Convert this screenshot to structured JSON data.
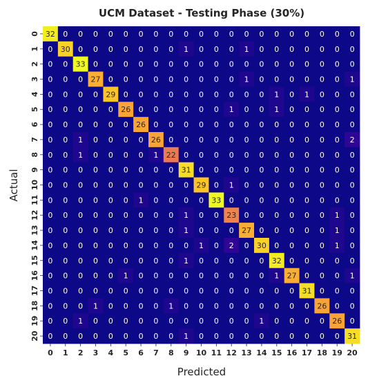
{
  "chart_data": {
    "type": "heatmap",
    "title": "UCM Dataset - Testing Phase (30%)",
    "xlabel": "Predicted",
    "ylabel": "Actual",
    "x_categories": [
      "0",
      "1",
      "2",
      "3",
      "4",
      "5",
      "6",
      "7",
      "8",
      "9",
      "10",
      "11",
      "12",
      "13",
      "14",
      "15",
      "16",
      "17",
      "18",
      "19",
      "20"
    ],
    "y_categories": [
      "0",
      "1",
      "2",
      "3",
      "4",
      "5",
      "6",
      "7",
      "8",
      "9",
      "10",
      "11",
      "12",
      "13",
      "14",
      "15",
      "16",
      "17",
      "18",
      "19",
      "20"
    ],
    "values": [
      [
        32,
        0,
        0,
        0,
        0,
        0,
        0,
        0,
        0,
        0,
        0,
        0,
        0,
        0,
        0,
        0,
        0,
        0,
        0,
        0,
        0
      ],
      [
        0,
        30,
        0,
        0,
        0,
        0,
        0,
        0,
        0,
        1,
        0,
        0,
        0,
        1,
        0,
        0,
        0,
        0,
        0,
        0,
        0
      ],
      [
        0,
        0,
        33,
        0,
        0,
        0,
        0,
        0,
        0,
        0,
        0,
        0,
        0,
        0,
        0,
        0,
        0,
        0,
        0,
        0,
        0
      ],
      [
        0,
        0,
        0,
        27,
        0,
        0,
        0,
        0,
        0,
        0,
        0,
        0,
        0,
        1,
        0,
        0,
        0,
        0,
        0,
        0,
        1
      ],
      [
        0,
        0,
        0,
        0,
        29,
        0,
        0,
        0,
        0,
        0,
        0,
        0,
        0,
        0,
        0,
        1,
        0,
        1,
        0,
        0,
        0
      ],
      [
        0,
        0,
        0,
        0,
        0,
        26,
        0,
        0,
        0,
        0,
        0,
        0,
        1,
        0,
        0,
        1,
        0,
        0,
        0,
        0,
        0
      ],
      [
        0,
        0,
        0,
        0,
        0,
        0,
        26,
        0,
        0,
        0,
        0,
        0,
        0,
        0,
        0,
        0,
        0,
        0,
        0,
        0,
        0
      ],
      [
        0,
        0,
        1,
        0,
        0,
        0,
        0,
        26,
        0,
        0,
        0,
        0,
        0,
        0,
        0,
        0,
        0,
        0,
        0,
        0,
        2
      ],
      [
        0,
        0,
        1,
        0,
        0,
        0,
        0,
        1,
        22,
        0,
        0,
        0,
        0,
        0,
        0,
        0,
        0,
        0,
        0,
        0,
        0
      ],
      [
        0,
        0,
        0,
        0,
        0,
        0,
        0,
        0,
        0,
        31,
        0,
        0,
        0,
        0,
        0,
        0,
        0,
        0,
        0,
        0,
        0
      ],
      [
        0,
        0,
        0,
        0,
        0,
        0,
        0,
        0,
        0,
        0,
        29,
        0,
        1,
        0,
        0,
        0,
        0,
        0,
        0,
        0,
        0
      ],
      [
        0,
        0,
        0,
        0,
        0,
        0,
        1,
        0,
        0,
        0,
        0,
        33,
        0,
        0,
        0,
        0,
        0,
        0,
        0,
        0,
        0
      ],
      [
        0,
        0,
        0,
        0,
        0,
        0,
        0,
        0,
        0,
        1,
        0,
        0,
        23,
        0,
        0,
        0,
        0,
        0,
        0,
        1,
        0
      ],
      [
        0,
        0,
        0,
        0,
        0,
        0,
        0,
        0,
        0,
        1,
        0,
        0,
        0,
        27,
        0,
        0,
        0,
        0,
        0,
        1,
        0
      ],
      [
        0,
        0,
        0,
        0,
        0,
        0,
        0,
        0,
        0,
        0,
        1,
        0,
        2,
        0,
        30,
        0,
        0,
        0,
        0,
        1,
        0
      ],
      [
        0,
        0,
        0,
        0,
        0,
        0,
        0,
        0,
        0,
        1,
        0,
        0,
        0,
        0,
        0,
        32,
        0,
        0,
        0,
        0,
        0
      ],
      [
        0,
        0,
        0,
        0,
        0,
        1,
        0,
        0,
        0,
        0,
        0,
        0,
        0,
        0,
        0,
        1,
        27,
        0,
        0,
        0,
        1
      ],
      [
        0,
        0,
        0,
        0,
        0,
        0,
        0,
        0,
        0,
        0,
        0,
        0,
        0,
        0,
        0,
        0,
        0,
        31,
        0,
        0,
        0
      ],
      [
        0,
        0,
        0,
        1,
        0,
        0,
        0,
        0,
        1,
        0,
        0,
        0,
        0,
        0,
        0,
        0,
        0,
        0,
        26,
        0,
        0
      ],
      [
        0,
        0,
        1,
        0,
        0,
        0,
        0,
        0,
        0,
        0,
        0,
        0,
        0,
        0,
        1,
        0,
        0,
        0,
        0,
        26,
        0
      ],
      [
        0,
        0,
        0,
        0,
        0,
        0,
        0,
        0,
        0,
        1,
        0,
        0,
        0,
        0,
        0,
        0,
        0,
        0,
        0,
        0,
        31
      ]
    ],
    "vmin": 0,
    "vmax": 33,
    "colormap": "plasma",
    "colors": {
      "low": "#0d0887",
      "high": "#f0f921",
      "low_text": "#ffffff",
      "high_text": "#262626"
    },
    "grid": false,
    "legend": "none"
  }
}
